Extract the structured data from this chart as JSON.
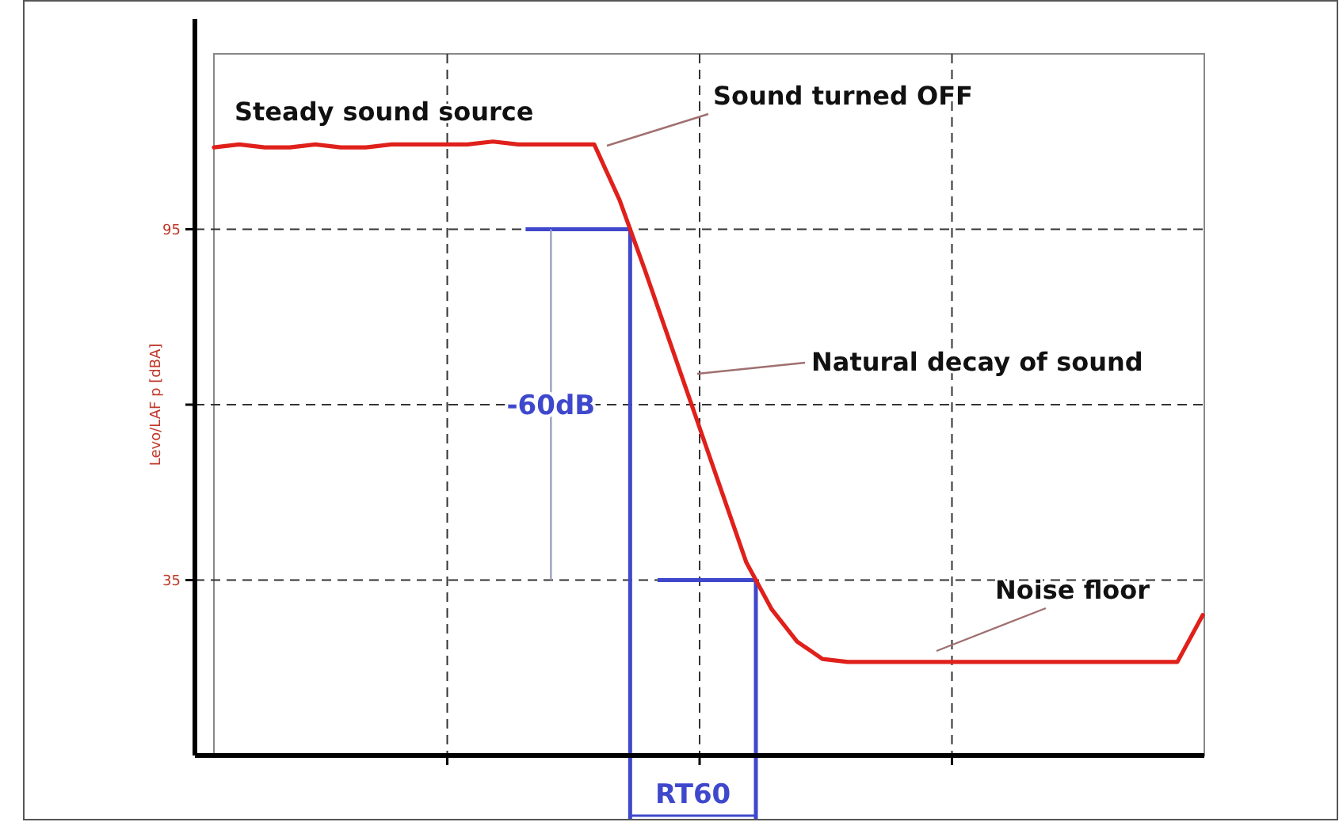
{
  "chart_data": {
    "type": "line",
    "ylabel": "Levo/LAF p [dBA]",
    "categories": [
      null,
      null,
      null,
      null,
      null,
      null,
      null,
      null,
      null,
      null,
      null,
      null,
      null,
      null,
      null,
      null,
      null,
      null,
      null,
      null,
      null,
      null,
      null,
      null,
      null,
      null,
      null,
      null,
      null,
      null,
      null,
      null,
      null,
      null,
      null,
      null,
      null,
      null,
      null,
      null
    ],
    "series": [
      {
        "color": "#e0201b",
        "values": [
          109,
          109.5,
          109,
          109,
          109.5,
          109,
          109,
          109.5,
          109.5,
          109.5,
          109.5,
          110,
          109.5,
          109.5,
          109.5,
          109.5,
          100,
          88,
          75.5,
          63,
          50.5,
          38,
          30,
          24.5,
          21.5,
          21,
          21,
          21,
          21,
          21,
          21,
          21,
          21,
          21,
          21,
          21,
          21,
          21,
          21,
          29
        ]
      }
    ],
    "ylim": [
      5,
      125
    ],
    "yticks": [
      35,
      {
        "value": 65,
        "label": null
      },
      95
    ],
    "grid": true,
    "marker": "none",
    "line_style": "solid",
    "ref_lines": [
      {
        "axis": "y",
        "value": 95,
        "label": null,
        "color": "#3f48cc"
      },
      {
        "axis": "y",
        "value": 35,
        "label": null,
        "color": "#3f48cc"
      }
    ],
    "annotations": [
      "Steady sound source",
      "Sound turned OFF",
      "Natural decay of sound",
      "Noise floor",
      "RT60",
      "-60dB"
    ]
  }
}
